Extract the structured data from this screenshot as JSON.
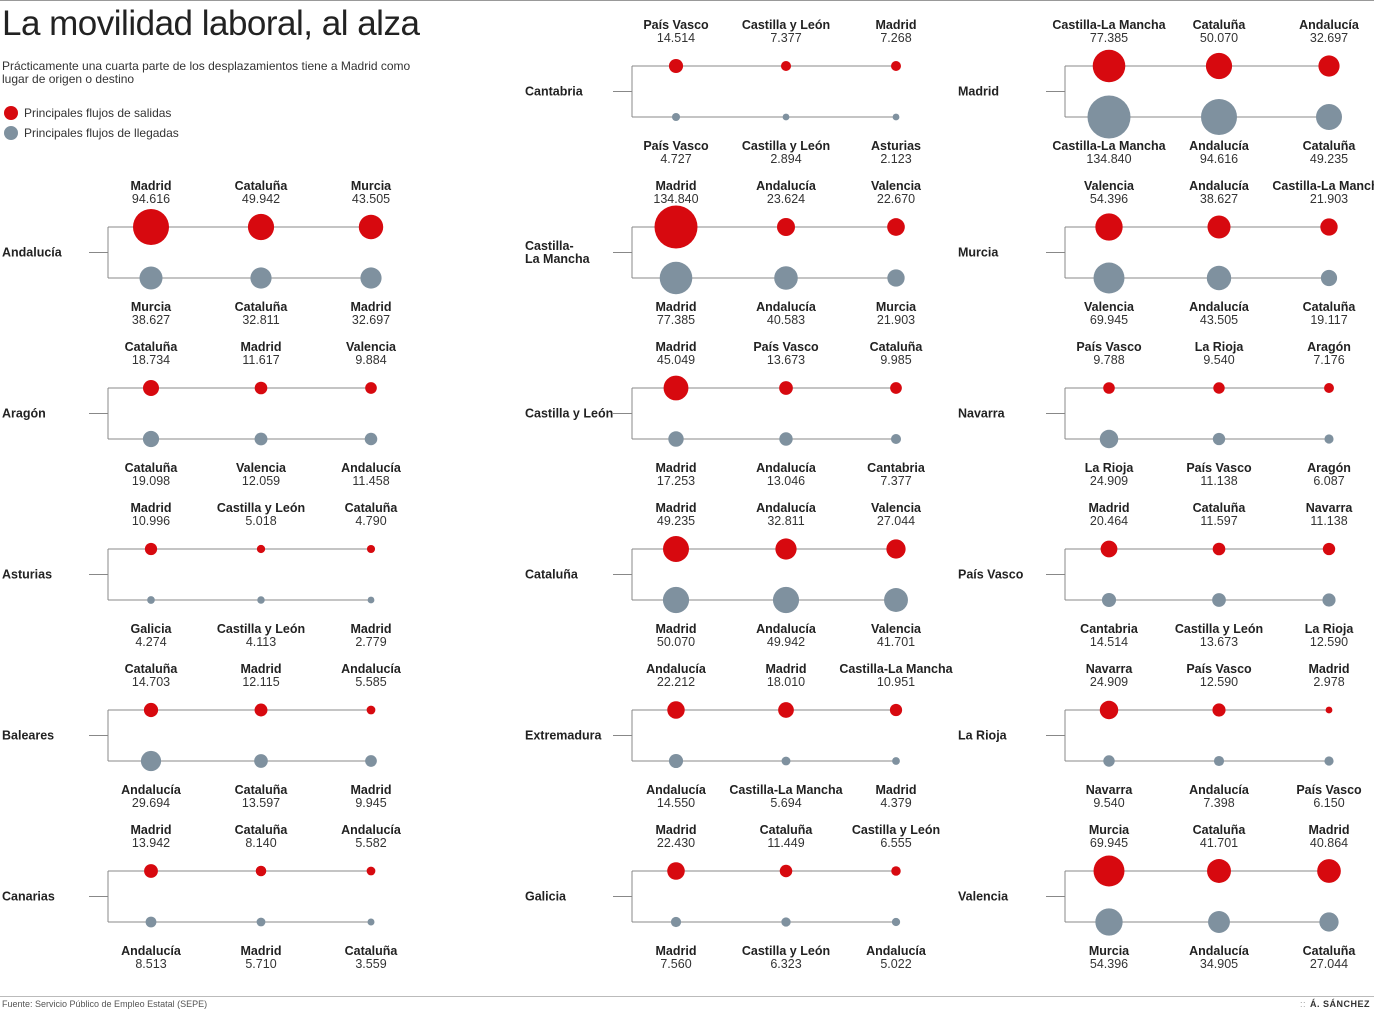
{
  "title": "La movilidad laboral, al alza",
  "subtitle": "Prácticamente una cuarta parte de los desplazamientos tiene a Madrid como lugar de origen o destino",
  "legend": {
    "exits": "Principales flujos de salidas",
    "arrivals": "Principales flujos de llegadas"
  },
  "source": "Fuente: Servicio Público de Empleo Estatal (SEPE)",
  "credit": "Á. SÁNCHEZ",
  "credit_separator": "::",
  "colors": {
    "exits": "#d7090f",
    "arrivals": "#7f919f",
    "line": "#888888"
  },
  "chart_data": {
    "type": "proportional-circle flow chart",
    "title": "La movilidad laboral, al alza",
    "units": "desplazamientos",
    "regions": [
      {
        "name": "Andalucía",
        "exits": [
          {
            "place": "Madrid",
            "value": "94.616"
          },
          {
            "place": "Cataluña",
            "value": "49.942"
          },
          {
            "place": "Murcia",
            "value": "43.505"
          }
        ],
        "arrivals": [
          {
            "place": "Murcia",
            "value": "38.627"
          },
          {
            "place": "Cataluña",
            "value": "32.811"
          },
          {
            "place": "Madrid",
            "value": "32.697"
          }
        ]
      },
      {
        "name": "Aragón",
        "exits": [
          {
            "place": "Cataluña",
            "value": "18.734"
          },
          {
            "place": "Madrid",
            "value": "11.617"
          },
          {
            "place": "Valencia",
            "value": "9.884"
          }
        ],
        "arrivals": [
          {
            "place": "Cataluña",
            "value": "19.098"
          },
          {
            "place": "Valencia",
            "value": "12.059"
          },
          {
            "place": "Andalucía",
            "value": "11.458"
          }
        ]
      },
      {
        "name": "Asturias",
        "exits": [
          {
            "place": "Madrid",
            "value": "10.996"
          },
          {
            "place": "Castilla y León",
            "value": "5.018"
          },
          {
            "place": "Cataluña",
            "value": "4.790"
          }
        ],
        "arrivals": [
          {
            "place": "Galicia",
            "value": "4.274"
          },
          {
            "place": "Castilla y León",
            "value": "4.113"
          },
          {
            "place": "Madrid",
            "value": "2.779"
          }
        ]
      },
      {
        "name": "Baleares",
        "exits": [
          {
            "place": "Cataluña",
            "value": "14.703"
          },
          {
            "place": "Madrid",
            "value": "12.115"
          },
          {
            "place": "Andalucía",
            "value": "5.585"
          }
        ],
        "arrivals": [
          {
            "place": "Andalucía",
            "value": "29.694"
          },
          {
            "place": "Cataluña",
            "value": "13.597"
          },
          {
            "place": "Madrid",
            "value": "9.945"
          }
        ]
      },
      {
        "name": "Canarias",
        "exits": [
          {
            "place": "Madrid",
            "value": "13.942"
          },
          {
            "place": "Cataluña",
            "value": "8.140"
          },
          {
            "place": "Andalucía",
            "value": "5.582"
          }
        ],
        "arrivals": [
          {
            "place": "Andalucía",
            "value": "8.513"
          },
          {
            "place": "Madrid",
            "value": "5.710"
          },
          {
            "place": "Cataluña",
            "value": "3.559"
          }
        ]
      },
      {
        "name": "Cantabria",
        "exits": [
          {
            "place": "País Vasco",
            "value": "14.514"
          },
          {
            "place": "Castilla y León",
            "value": "7.377"
          },
          {
            "place": "Madrid",
            "value": "7.268"
          }
        ],
        "arrivals": [
          {
            "place": "País Vasco",
            "value": "4.727"
          },
          {
            "place": "Castilla y León",
            "value": "2.894"
          },
          {
            "place": "Asturias",
            "value": "2.123"
          }
        ]
      },
      {
        "name": "Castilla-\nLa Mancha",
        "exits": [
          {
            "place": "Madrid",
            "value": "134.840"
          },
          {
            "place": "Andalucía",
            "value": "23.624"
          },
          {
            "place": "Valencia",
            "value": "22.670"
          }
        ],
        "arrivals": [
          {
            "place": "Madrid",
            "value": "77.385"
          },
          {
            "place": "Andalucía",
            "value": "40.583"
          },
          {
            "place": "Murcia",
            "value": "21.903"
          }
        ]
      },
      {
        "name": "Castilla y León",
        "exits": [
          {
            "place": "Madrid",
            "value": "45.049"
          },
          {
            "place": "País Vasco",
            "value": "13.673"
          },
          {
            "place": "Cataluña",
            "value": "9.985"
          }
        ],
        "arrivals": [
          {
            "place": "Madrid",
            "value": "17.253"
          },
          {
            "place": "Andalucía",
            "value": "13.046"
          },
          {
            "place": "Cantabria",
            "value": "7.377"
          }
        ]
      },
      {
        "name": "Cataluña",
        "exits": [
          {
            "place": "Madrid",
            "value": "49.235"
          },
          {
            "place": "Andalucía",
            "value": "32.811"
          },
          {
            "place": "Valencia",
            "value": "27.044"
          }
        ],
        "arrivals": [
          {
            "place": "Madrid",
            "value": "50.070"
          },
          {
            "place": "Andalucía",
            "value": "49.942"
          },
          {
            "place": "Valencia",
            "value": "41.701"
          }
        ]
      },
      {
        "name": "Extremadura",
        "exits": [
          {
            "place": "Andalucía",
            "value": "22.212"
          },
          {
            "place": "Madrid",
            "value": "18.010"
          },
          {
            "place": "Castilla-La Mancha",
            "value": "10.951"
          }
        ],
        "arrivals": [
          {
            "place": "Andalucía",
            "value": "14.550"
          },
          {
            "place": "Castilla-La Mancha",
            "value": "5.694"
          },
          {
            "place": "Madrid",
            "value": "4.379"
          }
        ]
      },
      {
        "name": "Galicia",
        "exits": [
          {
            "place": "Madrid",
            "value": "22.430"
          },
          {
            "place": "Cataluña",
            "value": "11.449"
          },
          {
            "place": "Castilla y León",
            "value": "6.555"
          }
        ],
        "arrivals": [
          {
            "place": "Madrid",
            "value": "7.560"
          },
          {
            "place": "Castilla y León",
            "value": "6.323"
          },
          {
            "place": "Andalucía",
            "value": "5.022"
          }
        ]
      },
      {
        "name": "Madrid",
        "exits": [
          {
            "place": "Castilla-La Mancha",
            "value": "77.385"
          },
          {
            "place": "Cataluña",
            "value": "50.070"
          },
          {
            "place": "Andalucía",
            "value": "32.697"
          }
        ],
        "arrivals": [
          {
            "place": "Castilla-La Mancha",
            "value": "134.840"
          },
          {
            "place": "Andalucía",
            "value": "94.616"
          },
          {
            "place": "Cataluña",
            "value": "49.235"
          }
        ]
      },
      {
        "name": "Murcia",
        "exits": [
          {
            "place": "Valencia",
            "value": "54.396"
          },
          {
            "place": "Andalucía",
            "value": "38.627"
          },
          {
            "place": "Castilla-La Mancha",
            "value": "21.903"
          }
        ],
        "arrivals": [
          {
            "place": "Valencia",
            "value": "69.945"
          },
          {
            "place": "Andalucía",
            "value": "43.505"
          },
          {
            "place": "Cataluña",
            "value": "19.117"
          }
        ]
      },
      {
        "name": "Navarra",
        "exits": [
          {
            "place": "País Vasco",
            "value": "9.788"
          },
          {
            "place": "La Rioja",
            "value": "9.540"
          },
          {
            "place": "Aragón",
            "value": "7.176"
          }
        ],
        "arrivals": [
          {
            "place": "La Rioja",
            "value": "24.909"
          },
          {
            "place": "País Vasco",
            "value": "11.138"
          },
          {
            "place": "Aragón",
            "value": "6.087"
          }
        ]
      },
      {
        "name": "País Vasco",
        "exits": [
          {
            "place": "Madrid",
            "value": "20.464"
          },
          {
            "place": "Cataluña",
            "value": "11.597"
          },
          {
            "place": "Navarra",
            "value": "11.138"
          }
        ],
        "arrivals": [
          {
            "place": "Cantabria",
            "value": "14.514"
          },
          {
            "place": "Castilla y León",
            "value": "13.673"
          },
          {
            "place": "La Rioja",
            "value": "12.590"
          }
        ]
      },
      {
        "name": "La Rioja",
        "exits": [
          {
            "place": "Navarra",
            "value": "24.909"
          },
          {
            "place": "País Vasco",
            "value": "12.590"
          },
          {
            "place": "Madrid",
            "value": "2.978"
          }
        ],
        "arrivals": [
          {
            "place": "Navarra",
            "value": "9.540"
          },
          {
            "place": "Andalucía",
            "value": "7.398"
          },
          {
            "place": "País Vasco",
            "value": "6.150"
          }
        ]
      },
      {
        "name": "Valencia",
        "exits": [
          {
            "place": "Murcia",
            "value": "69.945"
          },
          {
            "place": "Cataluña",
            "value": "41.701"
          },
          {
            "place": "Madrid",
            "value": "40.864"
          }
        ],
        "arrivals": [
          {
            "place": "Murcia",
            "value": "54.396"
          },
          {
            "place": "Andalucía",
            "value": "34.905"
          },
          {
            "place": "Cataluña",
            "value": "27.044"
          }
        ]
      }
    ]
  }
}
